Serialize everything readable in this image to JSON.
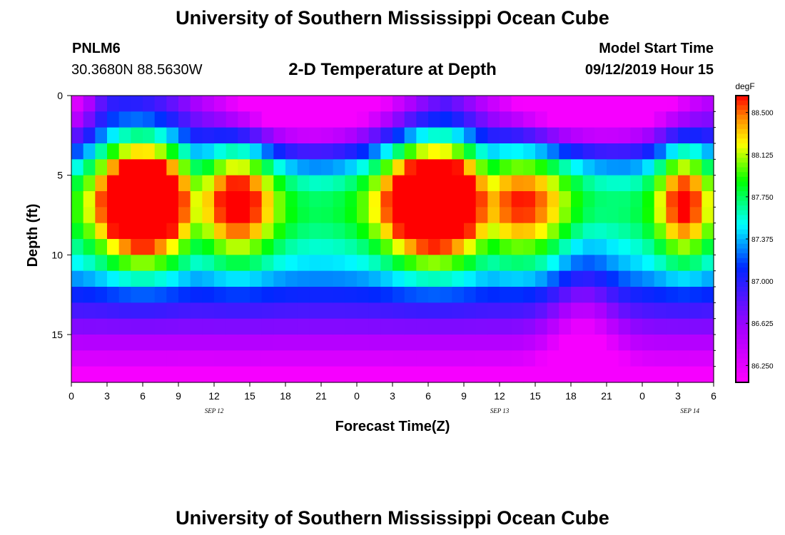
{
  "page": {
    "title": "University of Southern Mississippi Ocean Cube",
    "station_id": "PNLM6",
    "coordinates": "30.3680N 88.5630W",
    "product": "2-D Temperature at Depth",
    "model_start_label": "Model Start Time",
    "model_start_value": "09/12/2019 Hour 15",
    "footer_title": "University of Southern Mississippi Ocean Cube"
  },
  "chart_data": {
    "type": "heatmap",
    "xlabel": "Forecast Time(Z)",
    "ylabel": "Depth (ft)",
    "x_range_hours": [
      0,
      54
    ],
    "y_range_ft": [
      0,
      18
    ],
    "y_inverted": true,
    "x_ticks": [
      "0",
      "3",
      "6",
      "9",
      "12",
      "15",
      "18",
      "21",
      "0",
      "3",
      "6",
      "9",
      "12",
      "15",
      "18",
      "21",
      "0",
      "3",
      "6"
    ],
    "date_labels": [
      {
        "label": "SEP 12",
        "hour": 12
      },
      {
        "label": "SEP 13",
        "hour": 36
      },
      {
        "label": "SEP 14",
        "hour": 52
      }
    ],
    "y_ticks": [
      "0",
      "5",
      "10",
      "15"
    ],
    "colorbar": {
      "unit": "degF",
      "min": 86.1,
      "max": 88.65,
      "ticks": [
        "88.500",
        "88.125",
        "87.750",
        "87.375",
        "87.000",
        "86.625",
        "86.250"
      ]
    },
    "grid": false
  }
}
